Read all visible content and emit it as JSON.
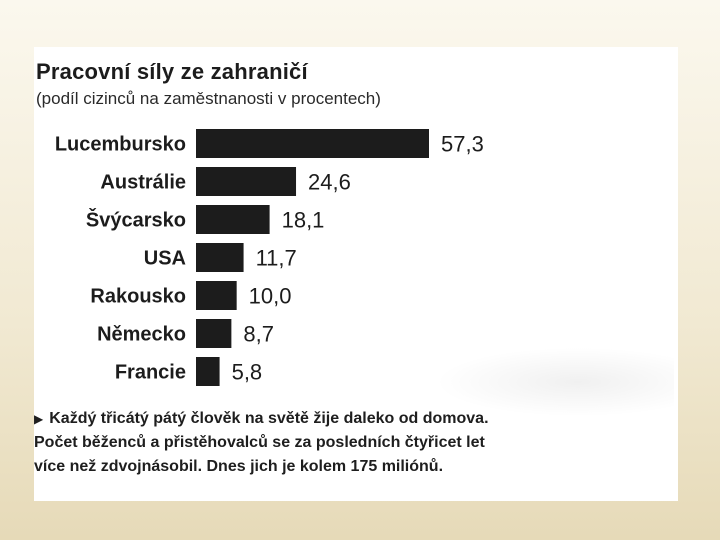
{
  "chart_data": {
    "type": "bar",
    "orientation": "horizontal",
    "title": "Pracovní síly ze zahraničí",
    "subtitle": "(podíl cizinců na zaměstnanosti v procentech)",
    "categories": [
      "Lucembursko",
      "Austrálie",
      "Švýcarsko",
      "USA",
      "Rakousko",
      "Německo",
      "Francie"
    ],
    "values": [
      57.3,
      24.6,
      18.1,
      11.7,
      10.0,
      8.7,
      5.8
    ],
    "value_labels": [
      "57,3",
      "24,6",
      "18,1",
      "11,7",
      "10,0",
      "8,7",
      "5,8"
    ],
    "bar_color": "#1c1c1c",
    "xlim": [
      0,
      57.3
    ]
  },
  "footnote": {
    "line1": "Každý třicátý pátý člověk na světě žije daleko od domova.",
    "line2": "Počet běženců a přistěhovalců se za posledních čtyřicet let",
    "line3": "více než zdvojnásobil. Dnes jich je kolem 175 miliónů."
  }
}
